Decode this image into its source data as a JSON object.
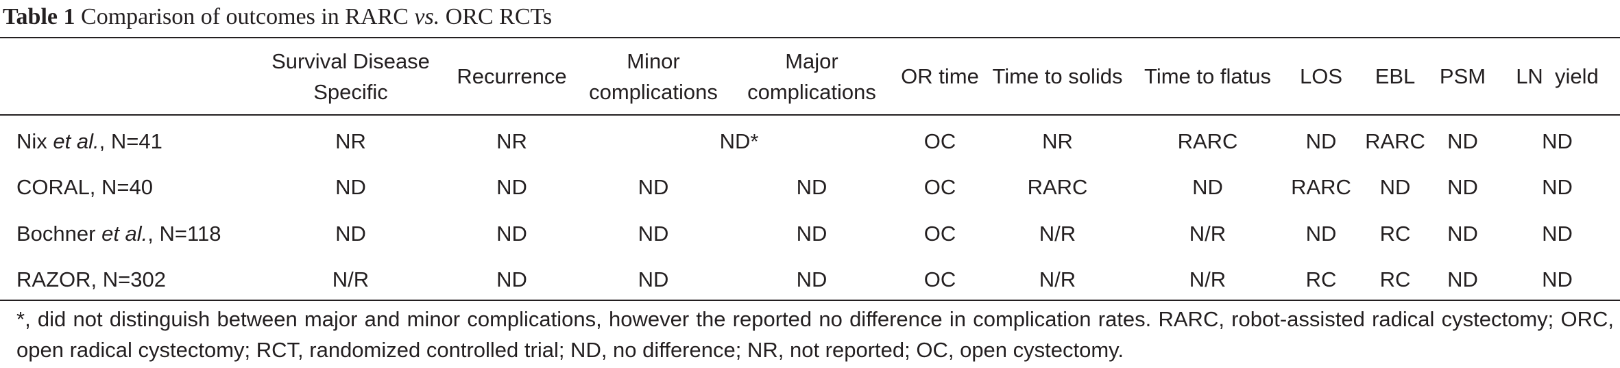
{
  "caption": {
    "label": "Table 1",
    "text_before": "Comparison of outcomes in RARC",
    "vs": "vs.",
    "text_after": "ORC RCTs"
  },
  "columns": [
    "",
    "Survival Disease Specific",
    "Recurrence",
    "Minor complications",
    "Major complications",
    "OR time",
    "Time to solids",
    "Time to flatus",
    "LOS",
    "EBL",
    "PSM",
    "LN  yield"
  ],
  "rows": [
    {
      "study_prefix": "Nix ",
      "study_italic": "et al.",
      "study_suffix": ", N=41",
      "survival": "NR",
      "recurrence": "NR",
      "complications_merged": "ND*",
      "or_time": "OC",
      "solids": "NR",
      "flatus": "RARC",
      "los": "ND",
      "ebl": "RARC",
      "psm": "ND",
      "ln": "ND"
    },
    {
      "study_prefix": "CORAL, N=40",
      "study_italic": "",
      "study_suffix": "",
      "survival": "ND",
      "recurrence": "ND",
      "minor": "ND",
      "major": "ND",
      "or_time": "OC",
      "solids": "RARC",
      "flatus": "ND",
      "los": "RARC",
      "ebl": "ND",
      "psm": "ND",
      "ln": "ND"
    },
    {
      "study_prefix": "Bochner ",
      "study_italic": "et al.",
      "study_suffix": ", N=118",
      "survival": "ND",
      "recurrence": "ND",
      "minor": "ND",
      "major": "ND",
      "or_time": "OC",
      "solids": "N/R",
      "flatus": "N/R",
      "los": "ND",
      "ebl": "RC",
      "psm": "ND",
      "ln": "ND"
    },
    {
      "study_prefix": "RAZOR, N=302",
      "study_italic": "",
      "study_suffix": "",
      "survival": "N/R",
      "recurrence": "ND",
      "minor": "ND",
      "major": "ND",
      "or_time": "OC",
      "solids": "N/R",
      "flatus": "N/R",
      "los": "RC",
      "ebl": "RC",
      "psm": "ND",
      "ln": "ND"
    }
  ],
  "footnote": "*, did not distinguish between major and minor complications, however the reported no difference in complication rates. RARC, robot-assisted radical cystectomy; ORC, open radical cystectomy; RCT, randomized controlled trial; ND, no difference; NR, not reported; OC, open cystectomy."
}
